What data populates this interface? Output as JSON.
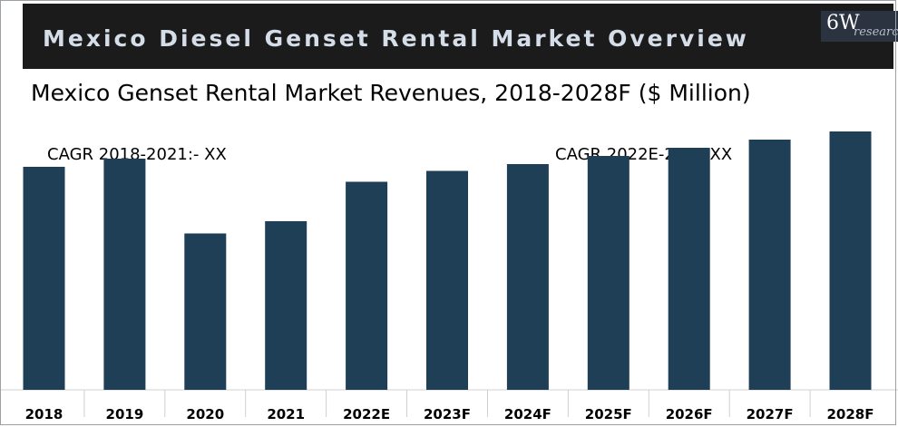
{
  "header": {
    "banner_title": "Mexico Diesel Genset Rental Market Overview",
    "logo_primary": "6W",
    "logo_secondary": "research"
  },
  "annotations": {
    "cagr_left": "CAGR 2018-2021:- XX",
    "cagr_right": "CAGR 2022E-28F:- XX"
  },
  "colors": {
    "bar": "#1f3f56",
    "banner": "#1b1b1b",
    "banner_text": "#d4dde8"
  },
  "chart_data": {
    "type": "bar",
    "title": "Mexico Genset Rental Market Revenues, 2018-2028F ($ Million)",
    "categories": [
      "2018",
      "2019",
      "2020",
      "2021",
      "2022E",
      "2023F",
      "2024F",
      "2025F",
      "2026F",
      "2027F",
      "2028F"
    ],
    "values": [
      164,
      170,
      115,
      124,
      153,
      161,
      166,
      172,
      178,
      184,
      190
    ],
    "xlabel": "",
    "ylabel": "",
    "ylim": [
      0,
      200
    ],
    "value_unit": "relative (no axis scale shown)",
    "grid": false,
    "legend": "none"
  }
}
